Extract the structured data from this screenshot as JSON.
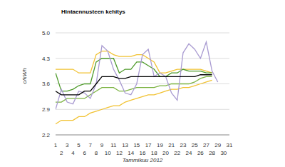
{
  "chart_data": {
    "type": "line",
    "title": "Hintaennusteen kehitys",
    "x_label": "Tammikuu 2012",
    "y_label": "c/kWh",
    "x": [
      1,
      2,
      3,
      4,
      5,
      6,
      7,
      8,
      9,
      10,
      11,
      12,
      13,
      14,
      15,
      16,
      17,
      18,
      19,
      20,
      21,
      22,
      23,
      24,
      25,
      26,
      27,
      28,
      29
    ],
    "series": [
      {
        "color": "#f1c232",
        "values": [
          4.0,
          4.0,
          4.0,
          4.0,
          3.9,
          3.9,
          3.9,
          4.4,
          4.5,
          4.5,
          4.4,
          4.35,
          4.35,
          4.35,
          4.4,
          4.4,
          4.3,
          4.2,
          3.9,
          3.9,
          3.95,
          4.0,
          4.0,
          4.0,
          4.0,
          4.0,
          3.95,
          3.9,
          null
        ]
      },
      {
        "color": "#f1c232",
        "values": [
          2.5,
          2.6,
          2.6,
          2.6,
          2.7,
          2.7,
          2.8,
          2.85,
          2.9,
          2.95,
          3.0,
          3.0,
          3.1,
          3.15,
          3.2,
          3.25,
          3.3,
          3.3,
          3.35,
          3.4,
          3.45,
          3.45,
          3.5,
          3.5,
          3.55,
          3.6,
          3.65,
          3.7,
          null
        ]
      },
      {
        "color": "#4e9a2a",
        "values": [
          3.9,
          3.4,
          3.4,
          3.45,
          3.55,
          3.6,
          3.6,
          4.2,
          4.3,
          4.3,
          4.3,
          3.9,
          4.0,
          4.0,
          4.2,
          4.2,
          4.1,
          4.0,
          3.8,
          3.8,
          3.9,
          3.9,
          4.0,
          3.95,
          3.95,
          3.95,
          3.9,
          3.9,
          null
        ]
      },
      {
        "color": "#7cb342",
        "values": [
          3.1,
          3.1,
          3.2,
          3.2,
          3.2,
          3.2,
          3.3,
          3.4,
          3.5,
          3.5,
          3.5,
          3.4,
          3.4,
          3.45,
          3.5,
          3.5,
          3.5,
          3.5,
          3.55,
          3.55,
          3.6,
          3.6,
          3.6,
          3.6,
          3.65,
          3.75,
          3.8,
          3.8,
          null
        ]
      },
      {
        "color": "#a99bd1",
        "values": [
          2.9,
          3.45,
          3.1,
          3.05,
          3.4,
          3.35,
          3.2,
          3.6,
          4.65,
          4.5,
          4.0,
          3.7,
          3.35,
          3.3,
          3.6,
          4.4,
          4.55,
          3.8,
          3.9,
          3.8,
          3.35,
          3.15,
          4.45,
          4.7,
          4.55,
          4.3,
          4.75,
          3.95,
          3.65
        ]
      },
      {
        "color": "#000000",
        "values": [
          3.4,
          3.3,
          3.3,
          3.3,
          3.3,
          3.4,
          3.4,
          3.6,
          3.8,
          3.8,
          3.8,
          3.75,
          3.75,
          3.8,
          3.8,
          3.8,
          3.8,
          3.8,
          3.8,
          3.8,
          3.8,
          3.8,
          3.8,
          3.8,
          3.8,
          3.85,
          3.85,
          3.85,
          null
        ]
      }
    ],
    "xlim": [
      1,
      31
    ],
    "xticks": [
      1,
      2,
      3,
      4,
      5,
      6,
      7,
      8,
      9,
      10,
      11,
      12,
      13,
      14,
      15,
      16,
      17,
      18,
      19,
      20,
      21,
      22,
      23,
      24,
      25,
      26,
      27,
      28,
      29,
      30,
      31
    ],
    "ylim": [
      2.2,
      5.0
    ],
    "yticks": [
      2.2,
      2.9,
      3.6,
      4.3,
      5.0
    ],
    "grid": true
  }
}
